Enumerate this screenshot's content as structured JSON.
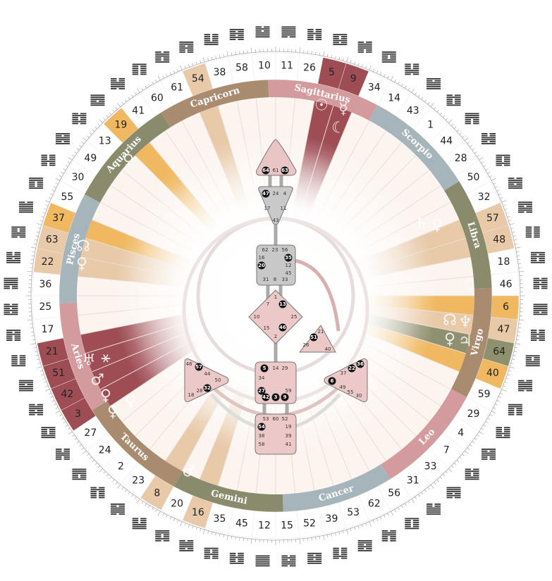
{
  "wheel": {
    "gates": [
      "54",
      "38",
      "58",
      "10",
      "11",
      "26",
      "5",
      "9",
      "34",
      "14",
      "43",
      "1",
      "44",
      "28",
      "50",
      "32",
      "57",
      "48",
      "18",
      "46",
      "6",
      "47",
      "64",
      "40",
      "59",
      "29",
      "4",
      "7",
      "33",
      "31",
      "56",
      "62",
      "53",
      "39",
      "52",
      "15",
      "12",
      "45",
      "35",
      "16",
      "20",
      "8",
      "23",
      "2",
      "24",
      "27",
      "3",
      "42",
      "51",
      "21",
      "17",
      "25",
      "36",
      "22",
      "63",
      "37",
      "55",
      "30",
      "49",
      "13",
      "19",
      "41",
      "60",
      "61"
    ],
    "signs": [
      "Sagittarius",
      "Scorpio",
      "Libra",
      "Virgo",
      "Leo",
      "Cancer",
      "Gemini",
      "Taurus",
      "Aries",
      "Pisces",
      "Aquarius",
      "Capricorn"
    ],
    "planets": [
      "☉",
      "☿",
      "☾",
      "♄",
      "♀",
      "☾",
      "☊",
      "♆",
      "♀",
      "♃",
      "♅",
      "⚹",
      "♂",
      "♀",
      "♀",
      "♀",
      "☊",
      "♀",
      "♀",
      "♂"
    ]
  },
  "bodygraph": {
    "centers": [
      {
        "gates": [
          "64",
          "61",
          "63"
        ]
      },
      {
        "gates": [
          "47",
          "24",
          "4",
          "17",
          "11",
          "43"
        ]
      },
      {
        "gates": [
          "62",
          "23",
          "56",
          "16",
          "35",
          "20",
          "12",
          "45",
          "31",
          "8",
          "33"
        ]
      },
      {
        "gates": [
          "1",
          "7",
          "13",
          "10",
          "25",
          "15",
          "46",
          "2"
        ]
      },
      {
        "gates": [
          "21",
          "51",
          "26",
          "40"
        ]
      },
      {
        "gates": [
          "48",
          "57",
          "44",
          "50",
          "32",
          "28",
          "18"
        ]
      },
      {
        "gates": [
          "5",
          "14",
          "29",
          "34",
          "27",
          "59",
          "42",
          "3",
          "9"
        ]
      },
      {
        "gates": [
          "36",
          "22",
          "37",
          "6",
          "49",
          "55",
          "30"
        ]
      },
      {
        "gates": [
          "53",
          "60",
          "52",
          "54",
          "19",
          "38",
          "39",
          "58",
          "41"
        ]
      }
    ]
  }
}
